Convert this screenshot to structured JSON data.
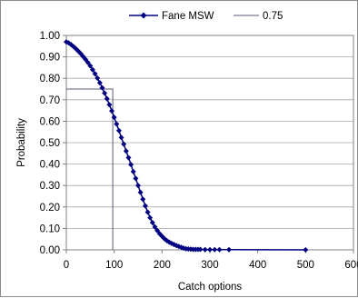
{
  "chart_data": {
    "type": "line",
    "title": "",
    "xlabel": "Catch options",
    "ylabel": "Probability",
    "xlim": [
      0,
      600
    ],
    "ylim": [
      0,
      1
    ],
    "x_ticks": [
      "0",
      "100",
      "200",
      "300",
      "400",
      "500",
      "600"
    ],
    "y_ticks": [
      "0.00",
      "0.10",
      "0.20",
      "0.30",
      "0.40",
      "0.50",
      "0.60",
      "0.70",
      "0.80",
      "0.90",
      "1.00"
    ],
    "grid": "horizontal",
    "legend_position": "top",
    "series": [
      {
        "name": "Fane MSW",
        "color": "#000080",
        "marker": "diamond",
        "x": [
          0,
          5,
          10,
          15,
          20,
          25,
          30,
          35,
          40,
          45,
          50,
          55,
          60,
          65,
          70,
          75,
          80,
          85,
          90,
          95,
          100,
          105,
          110,
          115,
          120,
          125,
          130,
          135,
          140,
          145,
          150,
          155,
          160,
          165,
          170,
          175,
          180,
          185,
          190,
          195,
          200,
          205,
          210,
          215,
          220,
          225,
          230,
          235,
          240,
          245,
          250,
          255,
          260,
          265,
          270,
          275,
          280,
          290,
          300,
          310,
          320,
          340,
          500
        ],
        "y": [
          0.97,
          0.965,
          0.957,
          0.948,
          0.938,
          0.927,
          0.915,
          0.902,
          0.889,
          0.874,
          0.858,
          0.84,
          0.821,
          0.801,
          0.779,
          0.756,
          0.731,
          0.705,
          0.677,
          0.648,
          0.618,
          0.587,
          0.556,
          0.524,
          0.493,
          0.461,
          0.43,
          0.398,
          0.365,
          0.333,
          0.3,
          0.268,
          0.236,
          0.205,
          0.176,
          0.15,
          0.127,
          0.107,
          0.09,
          0.075,
          0.063,
          0.052,
          0.043,
          0.036,
          0.03,
          0.025,
          0.02,
          0.016,
          0.012,
          0.008,
          0.005,
          0.004,
          0.003,
          0.002,
          0.002,
          0.002,
          0.002,
          0.001,
          0.001,
          0.001,
          0.001,
          0.001,
          0.0
        ]
      },
      {
        "name": "0.75",
        "color": "#5a5a7a",
        "x": [
          0,
          97,
          97
        ],
        "y": [
          0.75,
          0.75,
          0.0
        ]
      }
    ]
  }
}
